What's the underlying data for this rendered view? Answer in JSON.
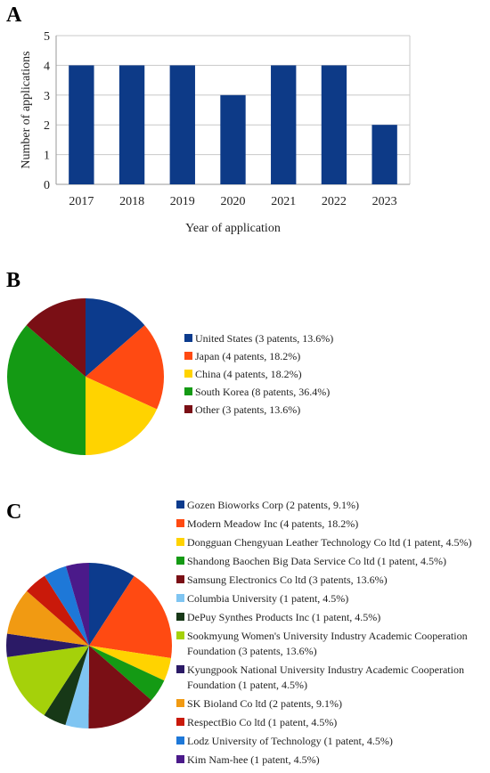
{
  "panels": {
    "a": "A",
    "b": "B",
    "c": "C"
  },
  "chart_data": [
    {
      "type": "bar",
      "panel": "A",
      "categories": [
        "2017",
        "2018",
        "2019",
        "2020",
        "2021",
        "2022",
        "2023"
      ],
      "values": [
        4,
        4,
        4,
        3,
        4,
        4,
        2
      ],
      "xlabel": "Year of application",
      "ylabel": "Number of applications",
      "ylim": [
        0,
        5
      ],
      "yticks": [
        "0",
        "1",
        "2",
        "3",
        "4",
        "5"
      ],
      "grid": true,
      "color": "#0d3a87"
    },
    {
      "type": "pie",
      "panel": "B",
      "legend_position": "right",
      "slices": [
        {
          "label": "United States (3 patents, 13.6%)",
          "value": 13.6,
          "color": "#0c3b8d"
        },
        {
          "label": "Japan (4 patents, 18.2%)",
          "value": 18.2,
          "color": "#ff4a12"
        },
        {
          "label": "China (4 patents, 18.2%)",
          "value": 18.2,
          "color": "#ffd300"
        },
        {
          "label": "South Korea (8 patents, 36.4%)",
          "value": 36.4,
          "color": "#149a14"
        },
        {
          "label": "Other (3 patents, 13.6%)",
          "value": 13.6,
          "color": "#7a0f15"
        }
      ]
    },
    {
      "type": "pie",
      "panel": "C",
      "legend_position": "right",
      "slices": [
        {
          "label": [
            "Gozen Bioworks Corp (2 patents, 9.1%)"
          ],
          "value": 9.1,
          "color": "#0c3b8d"
        },
        {
          "label": [
            "Modern Meadow Inc (4 patents, 18.2%)"
          ],
          "value": 18.2,
          "color": "#ff4a12"
        },
        {
          "label": [
            "Dongguan Chengyuan Leather Technology Co ltd (1 patent, 4.5%)"
          ],
          "value": 4.5,
          "color": "#ffd300"
        },
        {
          "label": [
            "Shandong Baochen Big Data Service Co ltd (1 patent, 4.5%)"
          ],
          "value": 4.5,
          "color": "#149a14"
        },
        {
          "label": [
            "Samsung Electronics Co ltd (3 patents, 13.6%)"
          ],
          "value": 13.6,
          "color": "#7a0f15"
        },
        {
          "label": [
            "Columbia University (1 patent, 4.5%)"
          ],
          "value": 4.5,
          "color": "#7fc5f2"
        },
        {
          "label": [
            "DePuy Synthes Products Inc (1 patent, 4.5%)"
          ],
          "value": 4.5,
          "color": "#173817"
        },
        {
          "label": [
            "Sookmyung Women's University Industry Academic Cooperation",
            "Foundation (3 patents, 13.6%)"
          ],
          "value": 13.6,
          "color": "#a5d10a"
        },
        {
          "label": [
            "Kyungpook National University Industry Academic Cooperation",
            "Foundation (1 patent, 4.5%)"
          ],
          "value": 4.5,
          "color": "#2b1a66"
        },
        {
          "label": [
            "SK Bioland Co ltd (2 patents, 9.1%)"
          ],
          "value": 9.1,
          "color": "#f19a12"
        },
        {
          "label": [
            "RespectBio Co ltd (1 patent, 4.5%)"
          ],
          "value": 4.5,
          "color": "#c9190a"
        },
        {
          "label": [
            "Lodz University of Technology (1 patent, 4.5%)"
          ],
          "value": 4.5,
          "color": "#1e78d8"
        },
        {
          "label": [
            "Kim Nam-hee (1 patent, 4.5%)"
          ],
          "value": 4.5,
          "color": "#4b1a8a"
        }
      ]
    }
  ]
}
